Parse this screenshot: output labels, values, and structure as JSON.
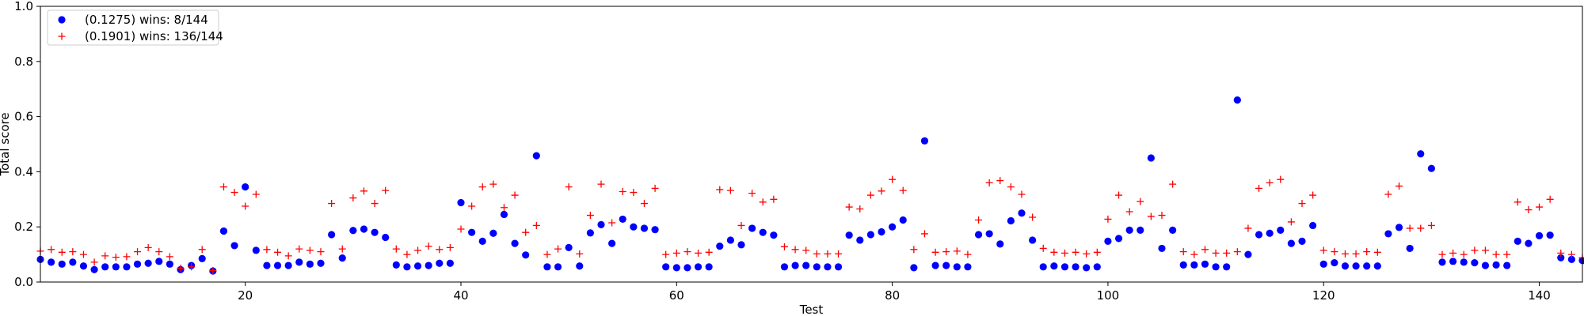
{
  "chart_data": {
    "type": "scatter",
    "xlabel": "Test",
    "ylabel": "Total score",
    "xlim": [
      1,
      144
    ],
    "ylim": [
      0,
      1.0
    ],
    "x_ticks": [
      20,
      40,
      60,
      80,
      100,
      120,
      140
    ],
    "y_ticks": [
      0.0,
      0.2,
      0.4,
      0.6,
      0.8,
      1.0
    ],
    "x_tick_labels": [
      "20",
      "40",
      "60",
      "80",
      "100",
      "120",
      "140"
    ],
    "y_tick_labels": [
      "0.0",
      "0.2",
      "0.4",
      "0.6",
      "0.8",
      "1.0"
    ],
    "grid": false,
    "legend_position": "top-left",
    "series": [
      {
        "name": "(0.1275) wins: 8/144",
        "marker": "circle",
        "color": "#0000ff",
        "values": [
          0.082,
          0.072,
          0.065,
          0.072,
          0.058,
          0.045,
          0.055,
          0.055,
          0.055,
          0.065,
          0.068,
          0.075,
          0.065,
          0.045,
          0.06,
          0.085,
          0.04,
          0.185,
          0.132,
          0.345,
          0.115,
          0.06,
          0.06,
          0.06,
          0.072,
          0.065,
          0.068,
          0.172,
          0.087,
          0.187,
          0.192,
          0.18,
          0.162,
          0.062,
          0.055,
          0.058,
          0.06,
          0.068,
          0.068,
          0.288,
          0.18,
          0.148,
          0.177,
          0.245,
          0.14,
          0.098,
          0.458,
          0.055,
          0.055,
          0.125,
          0.058,
          0.178,
          0.208,
          0.14,
          0.228,
          0.2,
          0.195,
          0.19,
          0.055,
          0.052,
          0.052,
          0.055,
          0.055,
          0.13,
          0.152,
          0.135,
          0.195,
          0.18,
          0.17,
          0.055,
          0.06,
          0.06,
          0.055,
          0.055,
          0.055,
          0.17,
          0.152,
          0.172,
          0.182,
          0.2,
          0.225,
          0.052,
          0.512,
          0.06,
          0.06,
          0.055,
          0.055,
          0.172,
          0.175,
          0.138,
          0.222,
          0.25,
          0.152,
          0.055,
          0.058,
          0.055,
          0.055,
          0.052,
          0.055,
          0.148,
          0.158,
          0.188,
          0.188,
          0.45,
          0.122,
          0.188,
          0.062,
          0.062,
          0.065,
          0.055,
          0.055,
          0.66,
          0.1,
          0.172,
          0.177,
          0.188,
          0.14,
          0.148,
          0.205,
          0.065,
          0.07,
          0.058,
          0.058,
          0.058,
          0.058,
          0.175,
          0.198,
          0.122,
          0.465,
          0.412,
          0.072,
          0.075,
          0.072,
          0.07,
          0.06,
          0.062,
          0.06,
          0.148,
          0.14,
          0.168,
          0.17,
          0.088,
          0.082,
          0.078
        ]
      },
      {
        "name": "(0.1901) wins: 136/144",
        "marker": "plus",
        "color": "#ff0000",
        "values": [
          0.112,
          0.118,
          0.108,
          0.11,
          0.1,
          0.072,
          0.095,
          0.09,
          0.092,
          0.11,
          0.125,
          0.11,
          0.092,
          0.05,
          0.055,
          0.118,
          0.042,
          0.345,
          0.325,
          0.275,
          0.318,
          0.118,
          0.108,
          0.095,
          0.12,
          0.115,
          0.11,
          0.285,
          0.12,
          0.305,
          0.33,
          0.285,
          0.332,
          0.12,
          0.1,
          0.115,
          0.13,
          0.118,
          0.125,
          0.192,
          0.275,
          0.345,
          0.355,
          0.27,
          0.315,
          0.18,
          0.205,
          0.1,
          0.12,
          0.345,
          0.102,
          0.242,
          0.355,
          0.215,
          0.328,
          0.325,
          0.285,
          0.34,
          0.1,
          0.105,
          0.11,
          0.105,
          0.108,
          0.335,
          0.332,
          0.205,
          0.322,
          0.29,
          0.3,
          0.128,
          0.118,
          0.115,
          0.102,
          0.102,
          0.102,
          0.272,
          0.265,
          0.315,
          0.33,
          0.372,
          0.332,
          0.118,
          0.175,
          0.108,
          0.11,
          0.112,
          0.1,
          0.225,
          0.36,
          0.368,
          0.345,
          0.318,
          0.235,
          0.122,
          0.108,
          0.105,
          0.108,
          0.102,
          0.108,
          0.228,
          0.315,
          0.255,
          0.292,
          0.238,
          0.242,
          0.355,
          0.11,
          0.1,
          0.118,
          0.105,
          0.105,
          0.11,
          0.195,
          0.34,
          0.36,
          0.372,
          0.218,
          0.285,
          0.315,
          0.115,
          0.11,
          0.102,
          0.102,
          0.11,
          0.108,
          0.318,
          0.348,
          0.195,
          0.195,
          0.205,
          0.1,
          0.105,
          0.1,
          0.115,
          0.115,
          0.1,
          0.1,
          0.29,
          0.262,
          0.272,
          0.3,
          0.105,
          0.1,
          0.088
        ]
      }
    ]
  }
}
